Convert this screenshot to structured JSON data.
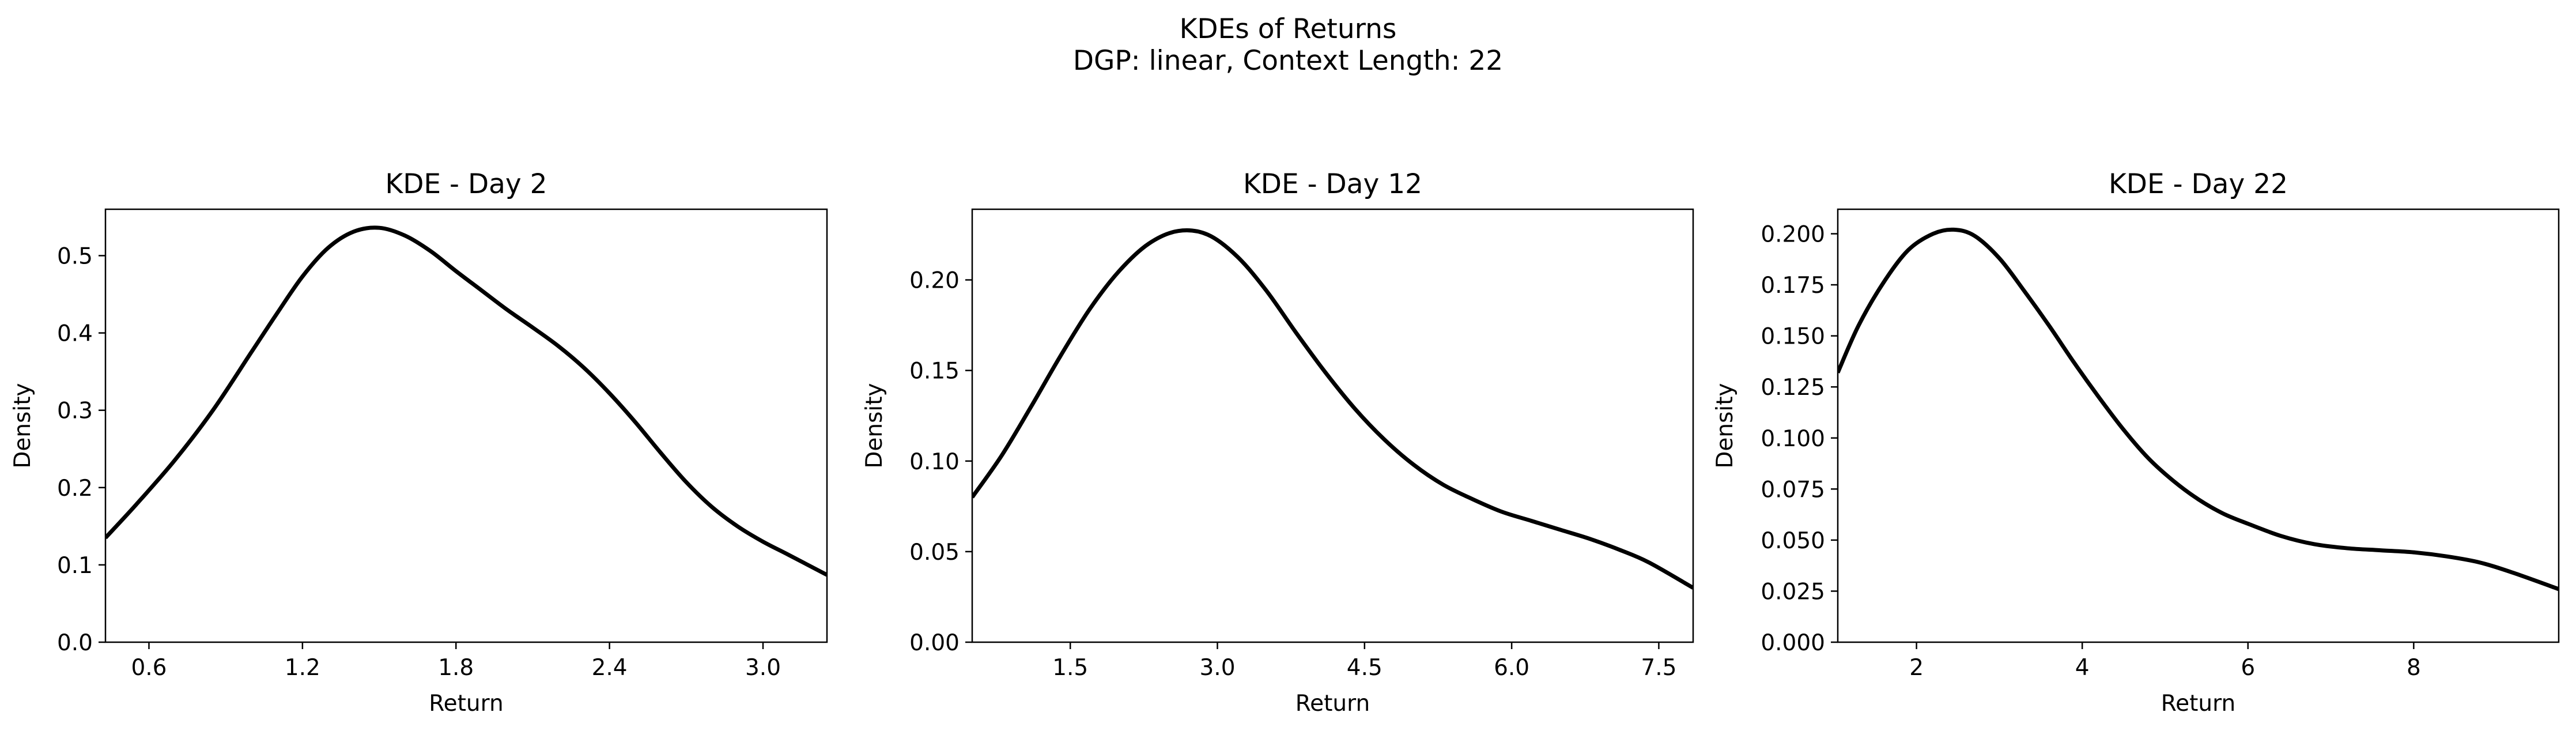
{
  "figure": {
    "title": "KDEs of Returns",
    "subtitle": "DGP: linear, Context Length: 22"
  },
  "chart_data": [
    {
      "type": "line",
      "title": "KDE - Day 2",
      "xlabel": "Return",
      "ylabel": "Density",
      "xlim": [
        0.43,
        3.25
      ],
      "ylim": [
        0.0,
        0.56
      ],
      "xticks": [
        0.6,
        1.2,
        1.8,
        2.4,
        3.0
      ],
      "xtick_labels": [
        "0.6",
        "1.2",
        "1.8",
        "2.4",
        "3.0"
      ],
      "yticks": [
        0.0,
        0.1,
        0.2,
        0.3,
        0.4,
        0.5
      ],
      "ytick_labels": [
        "0.0",
        "0.1",
        "0.2",
        "0.3",
        "0.4",
        "0.5"
      ],
      "grid": false,
      "line_color": "#000000",
      "series": [
        {
          "x": [
            0.43,
            0.55,
            0.7,
            0.85,
            1.0,
            1.1,
            1.2,
            1.3,
            1.4,
            1.5,
            1.6,
            1.7,
            1.8,
            1.9,
            2.0,
            2.1,
            2.2,
            2.3,
            2.4,
            2.5,
            2.6,
            2.7,
            2.8,
            2.9,
            3.0,
            3.1,
            3.25
          ],
          "y": [
            0.135,
            0.178,
            0.235,
            0.3,
            0.375,
            0.425,
            0.473,
            0.51,
            0.531,
            0.536,
            0.526,
            0.506,
            0.48,
            0.455,
            0.43,
            0.407,
            0.383,
            0.355,
            0.322,
            0.285,
            0.245,
            0.207,
            0.175,
            0.15,
            0.13,
            0.113,
            0.087
          ]
        }
      ]
    },
    {
      "type": "line",
      "title": "KDE - Day 12",
      "xlabel": "Return",
      "ylabel": "Density",
      "xlim": [
        0.5,
        7.85
      ],
      "ylim": [
        0.0,
        0.239
      ],
      "xticks": [
        1.5,
        3.0,
        4.5,
        6.0,
        7.5
      ],
      "xtick_labels": [
        "1.5",
        "3.0",
        "4.5",
        "6.0",
        "7.5"
      ],
      "yticks": [
        0.0,
        0.05,
        0.1,
        0.15,
        0.2
      ],
      "ytick_labels": [
        "0.00",
        "0.05",
        "0.10",
        "0.15",
        "0.20"
      ],
      "grid": false,
      "line_color": "#000000",
      "series": [
        {
          "x": [
            0.5,
            0.8,
            1.1,
            1.4,
            1.7,
            2.0,
            2.3,
            2.6,
            2.9,
            3.2,
            3.5,
            3.8,
            4.1,
            4.4,
            4.7,
            5.0,
            5.3,
            5.6,
            5.9,
            6.2,
            6.5,
            6.8,
            7.1,
            7.4,
            7.85
          ],
          "y": [
            0.08,
            0.103,
            0.13,
            0.158,
            0.184,
            0.205,
            0.22,
            0.227,
            0.225,
            0.213,
            0.194,
            0.171,
            0.149,
            0.129,
            0.112,
            0.098,
            0.087,
            0.079,
            0.072,
            0.067,
            0.062,
            0.057,
            0.051,
            0.044,
            0.03
          ]
        }
      ]
    },
    {
      "type": "line",
      "title": "KDE - Day 22",
      "xlabel": "Return",
      "ylabel": "Density",
      "xlim": [
        1.05,
        9.75
      ],
      "ylim": [
        0.0,
        0.212
      ],
      "xticks": [
        2,
        4,
        6,
        8
      ],
      "xtick_labels": [
        "2",
        "4",
        "6",
        "8"
      ],
      "yticks": [
        0.0,
        0.025,
        0.05,
        0.075,
        0.1,
        0.125,
        0.15,
        0.175,
        0.2
      ],
      "ytick_labels": [
        "0.000",
        "0.025",
        "0.050",
        "0.075",
        "0.100",
        "0.125",
        "0.150",
        "0.175",
        "0.200"
      ],
      "grid": false,
      "line_color": "#000000",
      "series": [
        {
          "x": [
            1.05,
            1.3,
            1.6,
            1.9,
            2.2,
            2.45,
            2.7,
            3.0,
            3.3,
            3.6,
            3.9,
            4.2,
            4.5,
            4.8,
            5.1,
            5.4,
            5.7,
            6.0,
            6.4,
            6.8,
            7.2,
            7.6,
            8.0,
            8.4,
            8.8,
            9.2,
            9.75
          ],
          "y": [
            0.132,
            0.155,
            0.176,
            0.192,
            0.2,
            0.202,
            0.199,
            0.188,
            0.172,
            0.155,
            0.137,
            0.12,
            0.104,
            0.09,
            0.079,
            0.07,
            0.063,
            0.058,
            0.052,
            0.048,
            0.046,
            0.045,
            0.044,
            0.042,
            0.039,
            0.034,
            0.026
          ]
        }
      ]
    }
  ]
}
